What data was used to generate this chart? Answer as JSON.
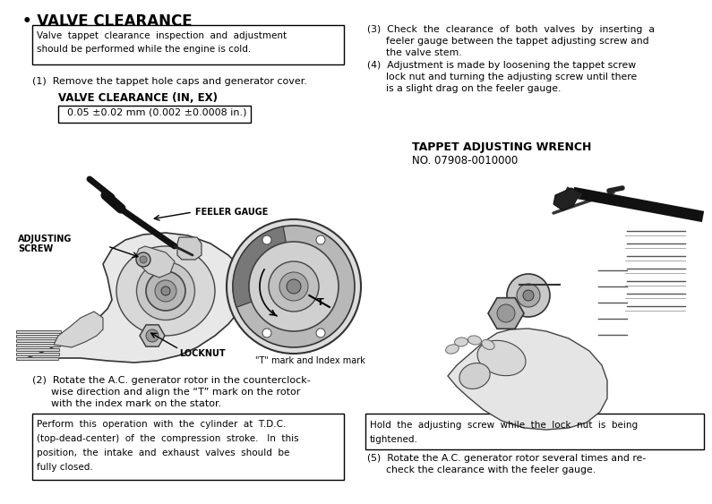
{
  "bg_color": "#ffffff",
  "title": "• VALVE CLEARANCE",
  "box1_lines": [
    "Valve  tappet  clearance  inspection  and  adjustment",
    "should be performed while the engine is cold."
  ],
  "step1": "(1)  Remove the tappet hole caps and generator cover.",
  "valve_clearance_label": "VALVE CLEARANCE (IN, EX)",
  "valve_clearance_value": "  0.05 ±0.02 mm (0.002 ±0.0008 in.)",
  "label_adjusting_line1": "ADJUSTING",
  "label_adjusting_line2": "SCREW",
  "label_feeler": "FEELER GAUGE",
  "label_locknut": "LOCKNUT",
  "label_tmark": "\"T\" mark and Index mark",
  "step2_line1": "(2)  Rotate the A.C. generator rotor in the counterclock-",
  "step2_line2": "      wise direction and align the “T” mark on the rotor",
  "step2_line3": "      with the index mark on the stator.",
  "box_bottom_left_lines": [
    "Perform  this  operation  with  the  cylinder  at  T.D.C.",
    "(top-dead-center)  of  the  compression  stroke.   In  this",
    "position,  the  intake  and  exhaust  valves  should  be",
    "fully closed."
  ],
  "step3_line1": "(3)  Check  the  clearance  of  both  valves  by  inserting  a",
  "step3_line2": "      feeler gauge between the tappet adjusting screw and",
  "step3_line3": "      the valve stem.",
  "step4_line1": "(4)  Adjustment is made by loosening the tappet screw",
  "step4_line2": "      lock nut and turning the adjusting screw until there",
  "step4_line3": "      is a slight drag on the feeler gauge.",
  "tappet_wrench_title": "TAPPET ADJUSTING WRENCH",
  "tappet_wrench_no": "NO. 07908-0010000",
  "box_bottom_right_lines": [
    "Hold  the  adjusting  screw  while  the  lock  nut  is  being",
    "tightened."
  ],
  "step5_line1": "(5)  Rotate the A.C. generator rotor several times and re-",
  "step5_line2": "      check the clearance with the feeler gauge."
}
